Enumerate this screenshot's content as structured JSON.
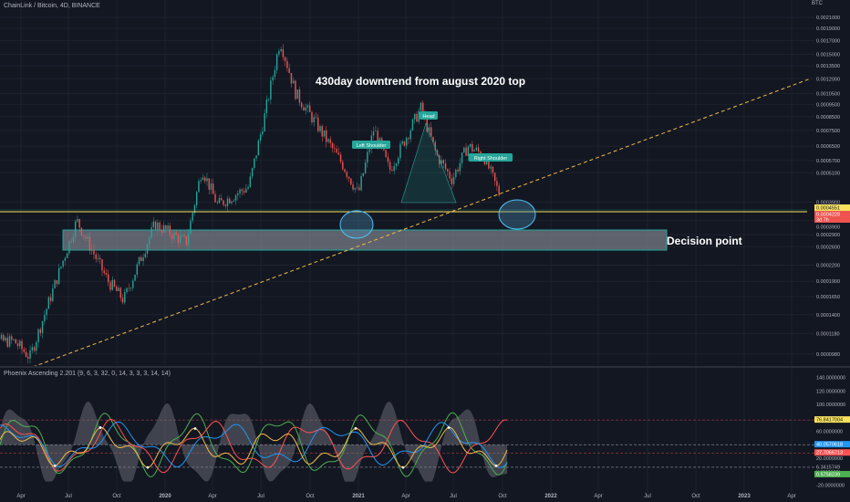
{
  "header": {
    "symbol": "ChainLink / Bitcoin, 4D, BINANCE",
    "currency": "BTC",
    "indicator": "Phoenix Ascending 2.201 (9, 6, 3, 32, 0, 14, 3, 3, 3, 14, 14)"
  },
  "colors": {
    "background": "#131722",
    "up": "#26a69a",
    "down": "#ef5350",
    "zone_fill": "#9aa0ac",
    "zone_stroke": "#26a69a",
    "trendline": "#f0b94a",
    "horizontal": "#f7e15b",
    "green_line": "#4caf50",
    "red_line": "#ff5252",
    "blue_line": "#2196f3",
    "white": "#ffffff"
  },
  "chart_data": [
    {
      "type": "candlestick",
      "title": "ChainLink / Bitcoin, 4D, BINANCE",
      "y_scale": "log",
      "y_ticks": [
        "0.0021000",
        "0.0019000",
        "0.0017000",
        "0.0015000",
        "0.0013500",
        "0.0012000",
        "0.0010500",
        "0.0009500",
        "0.0008500",
        "0.0007500",
        "0.0006500",
        "0.0005700",
        "0.0005100",
        "0.0003900",
        "0.0003300",
        "0.0002900",
        "0.0002600",
        "0.0002200",
        "0.0001900",
        "0.0001650",
        "0.0001400",
        "0.0001180",
        "0.0000980"
      ],
      "x_ticks": [
        "Apr",
        "Jul",
        "Oct",
        "2020",
        "Apr",
        "Jul",
        "Oct",
        "2021",
        "Apr",
        "Jul",
        "Oct",
        "2022",
        "Apr",
        "Jul",
        "Oct",
        "2023",
        "Apr"
      ],
      "price_labels": [
        "0.0004551",
        "0.0004228",
        "3d 7h",
        "0.0003900"
      ],
      "key_points": [
        {
          "date": "2019-03",
          "close": 0.00011
        },
        {
          "date": "2019-04",
          "close": 9.5e-05
        },
        {
          "date": "2019-07",
          "close": 0.00033
        },
        {
          "date": "2019-09",
          "close": 0.00019
        },
        {
          "date": "2019-10",
          "close": 0.00016
        },
        {
          "date": "2019-12",
          "close": 0.00032
        },
        {
          "date": "2020-02",
          "close": 0.00027
        },
        {
          "date": "2020-03",
          "close": 0.00053
        },
        {
          "date": "2020-04",
          "close": 0.00038
        },
        {
          "date": "2020-06",
          "close": 0.00045
        },
        {
          "date": "2020-07",
          "close": 0.00085
        },
        {
          "date": "2020-08",
          "close": 0.0017
        },
        {
          "date": "2020-09",
          "close": 0.00105
        },
        {
          "date": "2020-10",
          "close": 0.00085
        },
        {
          "date": "2020-12",
          "close": 0.00055
        },
        {
          "date": "2021-01",
          "close": 0.00042
        },
        {
          "date": "2021-02",
          "close": 0.00076
        },
        {
          "date": "2021-03",
          "close": 0.00052
        },
        {
          "date": "2021-05",
          "close": 0.00092
        },
        {
          "date": "2021-06",
          "close": 0.0006
        },
        {
          "date": "2021-07",
          "close": 0.00048
        },
        {
          "date": "2021-08",
          "close": 0.00065
        },
        {
          "date": "2021-09",
          "close": 0.0006
        },
        {
          "date": "2021-10",
          "close": 0.000423
        }
      ],
      "annotations": {
        "headline": "430day downtrend from august 2020 top",
        "left_shoulder": "Left Shoulder",
        "head": "Head",
        "right_shoulder": "Right Shoulder",
        "zone": "Decision point"
      }
    },
    {
      "type": "line",
      "title": "Phoenix Ascending 2.201 (9, 6, 3, 32, 0, 14, 3, 3, 3, 14, 14)",
      "y_ticks": [
        "140.0000000",
        "120.0000000",
        "100.0000000",
        "80.0000000",
        "60.0000000",
        "40.0000000",
        "20.0000000",
        "0.0000000",
        "-20.0000000"
      ],
      "value_labels": [
        "76.8417004",
        "40.0570618",
        "27.7066713",
        "6.3415749",
        "0.5758239"
      ],
      "levels": [
        76.84,
        40.06,
        27.71,
        6.34
      ]
    }
  ]
}
